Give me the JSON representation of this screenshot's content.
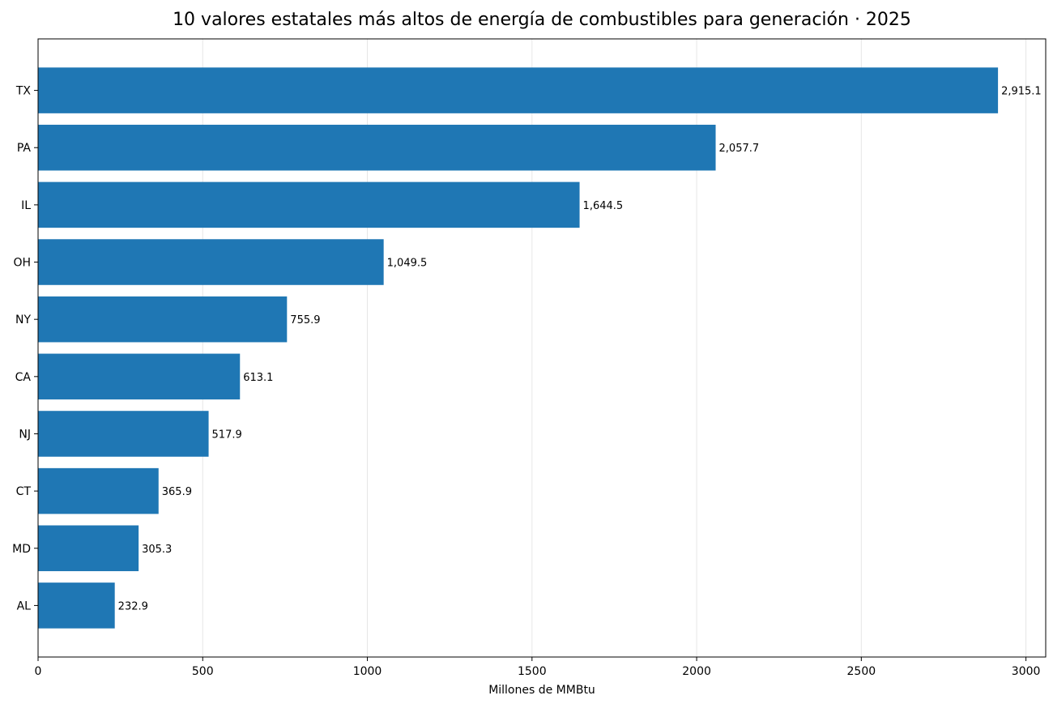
{
  "chart_data": {
    "type": "bar",
    "orientation": "horizontal",
    "title": "10 valores estatales más altos de energía de combustibles para generación · 2025",
    "xlabel": "Millones de MMBtu",
    "ylabel": "",
    "categories": [
      "TX",
      "PA",
      "IL",
      "OH",
      "NY",
      "CA",
      "NJ",
      "CT",
      "MD",
      "AL"
    ],
    "values": [
      2915.1,
      2057.7,
      1644.5,
      1049.5,
      755.9,
      613.1,
      517.9,
      365.9,
      305.3,
      232.9
    ],
    "data_labels": [
      "2,915.1",
      "2,057.7",
      "1,644.5",
      "1,049.5",
      "755.9",
      "613.1",
      "517.9",
      "365.9",
      "305.3",
      "232.9"
    ],
    "xlim": [
      0,
      3060
    ],
    "x_ticks": [
      0,
      500,
      1000,
      1500,
      2000,
      2500,
      3000
    ],
    "x_tick_labels": [
      "0",
      "500",
      "1000",
      "1500",
      "2000",
      "2500",
      "3000"
    ],
    "grid": {
      "x": true,
      "y": false
    },
    "bar_color": "#1f77b4",
    "legend": "none"
  }
}
